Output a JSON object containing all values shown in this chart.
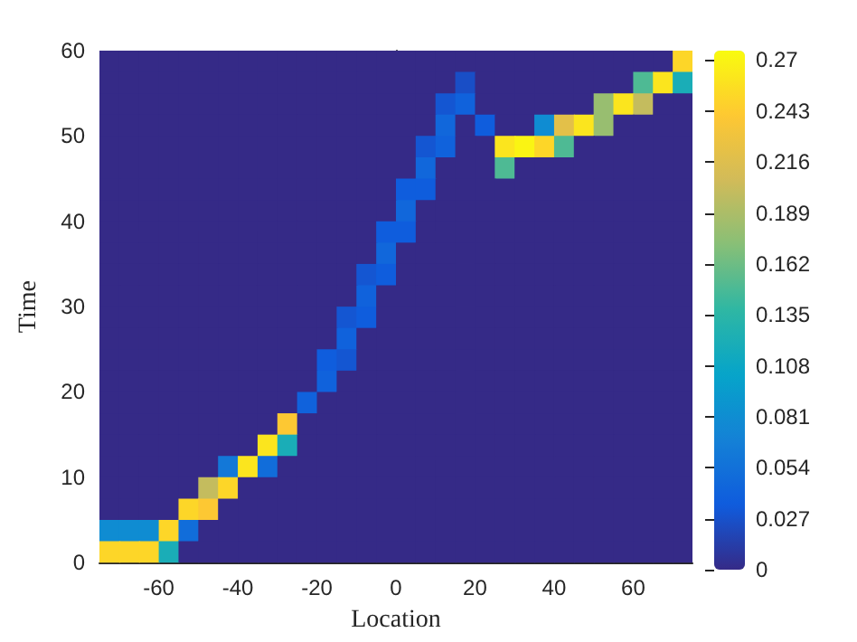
{
  "chart_data": {
    "type": "heatmap",
    "xlabel": "Location",
    "ylabel": "Time",
    "x": [
      -72.5,
      -67.5,
      -62.5,
      -57.5,
      -52.5,
      -47.5,
      -42.5,
      -37.5,
      -32.5,
      -27.5,
      -22.5,
      -17.5,
      -12.5,
      -7.5,
      -2.5,
      2.5,
      7.5,
      12.5,
      17.5,
      22.5,
      27.5,
      32.5,
      37.5,
      42.5,
      47.5,
      52.5,
      57.5,
      62.5,
      67.5,
      72.5
    ],
    "cells": [
      [
        0,
        0,
        0,
        0,
        0,
        0,
        0,
        0,
        0,
        0,
        0,
        0,
        0,
        0,
        0,
        0,
        0,
        0,
        0,
        0,
        0,
        0,
        0,
        0,
        0,
        0,
        0,
        0,
        0,
        0.25
      ],
      [
        0,
        0,
        0,
        0,
        0,
        0,
        0,
        0,
        0,
        0,
        0,
        0,
        0,
        0,
        0,
        0,
        0,
        0,
        0.025,
        0,
        0,
        0,
        0,
        0,
        0,
        0,
        0,
        0.15,
        0.26,
        0.12
      ],
      [
        0,
        0,
        0,
        0,
        0,
        0,
        0,
        0,
        0,
        0,
        0,
        0,
        0,
        0,
        0,
        0,
        0,
        0.03,
        0.04,
        0,
        0,
        0,
        0,
        0,
        0,
        0.18,
        0.26,
        0.2,
        0,
        0
      ],
      [
        0,
        0,
        0,
        0,
        0,
        0,
        0,
        0,
        0,
        0,
        0,
        0,
        0,
        0,
        0,
        0,
        0,
        0.045,
        0,
        0.035,
        0,
        0,
        0.08,
        0.22,
        0.26,
        0.18,
        0,
        0,
        0,
        0
      ],
      [
        0,
        0,
        0,
        0,
        0,
        0,
        0,
        0,
        0,
        0,
        0,
        0,
        0,
        0,
        0,
        0,
        0.03,
        0.04,
        0,
        0,
        0.26,
        0.27,
        0.25,
        0.15,
        0,
        0,
        0,
        0,
        0,
        0
      ],
      [
        0,
        0,
        0,
        0,
        0,
        0,
        0,
        0,
        0,
        0,
        0,
        0,
        0,
        0,
        0,
        0,
        0.045,
        0,
        0,
        0,
        0.15,
        0,
        0,
        0,
        0,
        0,
        0,
        0,
        0,
        0
      ],
      [
        0,
        0,
        0,
        0,
        0,
        0,
        0,
        0,
        0,
        0,
        0,
        0,
        0,
        0,
        0,
        0.035,
        0.035,
        0,
        0,
        0,
        0,
        0,
        0,
        0,
        0,
        0,
        0,
        0,
        0,
        0
      ],
      [
        0,
        0,
        0,
        0,
        0,
        0,
        0,
        0,
        0,
        0,
        0,
        0,
        0,
        0,
        0,
        0.045,
        0,
        0,
        0,
        0,
        0,
        0,
        0,
        0,
        0,
        0,
        0,
        0,
        0,
        0
      ],
      [
        0,
        0,
        0,
        0,
        0,
        0,
        0,
        0,
        0,
        0,
        0,
        0,
        0,
        0,
        0.035,
        0.035,
        0,
        0,
        0,
        0,
        0,
        0,
        0,
        0,
        0,
        0,
        0,
        0,
        0,
        0
      ],
      [
        0,
        0,
        0,
        0,
        0,
        0,
        0,
        0,
        0,
        0,
        0,
        0,
        0,
        0,
        0.045,
        0,
        0,
        0,
        0,
        0,
        0,
        0,
        0,
        0,
        0,
        0,
        0,
        0,
        0,
        0
      ],
      [
        0,
        0,
        0,
        0,
        0,
        0,
        0,
        0,
        0,
        0,
        0,
        0,
        0,
        0.03,
        0.035,
        0,
        0,
        0,
        0,
        0,
        0,
        0,
        0,
        0,
        0,
        0,
        0,
        0,
        0,
        0
      ],
      [
        0,
        0,
        0,
        0,
        0,
        0,
        0,
        0,
        0,
        0,
        0,
        0,
        0,
        0.04,
        0,
        0,
        0,
        0,
        0,
        0,
        0,
        0,
        0,
        0,
        0,
        0,
        0,
        0,
        0,
        0
      ],
      [
        0,
        0,
        0,
        0,
        0,
        0,
        0,
        0,
        0,
        0,
        0,
        0,
        0.03,
        0.035,
        0,
        0,
        0,
        0,
        0,
        0,
        0,
        0,
        0,
        0,
        0,
        0,
        0,
        0,
        0,
        0
      ],
      [
        0,
        0,
        0,
        0,
        0,
        0,
        0,
        0,
        0,
        0,
        0,
        0,
        0.04,
        0,
        0,
        0,
        0,
        0,
        0,
        0,
        0,
        0,
        0,
        0,
        0,
        0,
        0,
        0,
        0,
        0
      ],
      [
        0,
        0,
        0,
        0,
        0,
        0,
        0,
        0,
        0,
        0,
        0,
        0.035,
        0.03,
        0,
        0,
        0,
        0,
        0,
        0,
        0,
        0,
        0,
        0,
        0,
        0,
        0,
        0,
        0,
        0,
        0
      ],
      [
        0,
        0,
        0,
        0,
        0,
        0,
        0,
        0,
        0,
        0,
        0,
        0.04,
        0,
        0,
        0,
        0,
        0,
        0,
        0,
        0,
        0,
        0,
        0,
        0,
        0,
        0,
        0,
        0,
        0,
        0
      ],
      [
        0,
        0,
        0,
        0,
        0,
        0,
        0,
        0,
        0,
        0,
        0.04,
        0,
        0,
        0,
        0,
        0,
        0,
        0,
        0,
        0,
        0,
        0,
        0,
        0,
        0,
        0,
        0,
        0,
        0,
        0
      ],
      [
        0,
        0,
        0,
        0,
        0,
        0,
        0,
        0,
        0,
        0.24,
        0,
        0,
        0,
        0,
        0,
        0,
        0,
        0,
        0,
        0,
        0,
        0,
        0,
        0,
        0,
        0,
        0,
        0,
        0,
        0
      ],
      [
        0,
        0,
        0,
        0,
        0,
        0,
        0,
        0,
        0.26,
        0.12,
        0,
        0,
        0,
        0,
        0,
        0,
        0,
        0,
        0,
        0,
        0,
        0,
        0,
        0,
        0,
        0,
        0,
        0,
        0,
        0
      ],
      [
        0,
        0,
        0,
        0,
        0,
        0,
        0.06,
        0.26,
        0.05,
        0,
        0,
        0,
        0,
        0,
        0,
        0,
        0,
        0,
        0,
        0,
        0,
        0,
        0,
        0,
        0,
        0,
        0,
        0,
        0,
        0
      ],
      [
        0,
        0,
        0,
        0,
        0,
        0.2,
        0.25,
        0,
        0,
        0,
        0,
        0,
        0,
        0,
        0,
        0,
        0,
        0,
        0,
        0,
        0,
        0,
        0,
        0,
        0,
        0,
        0,
        0,
        0,
        0
      ],
      [
        0,
        0,
        0,
        0,
        0.25,
        0.24,
        0,
        0,
        0,
        0,
        0,
        0,
        0,
        0,
        0,
        0,
        0,
        0,
        0,
        0,
        0,
        0,
        0,
        0,
        0,
        0,
        0,
        0,
        0,
        0
      ],
      [
        0.08,
        0.08,
        0.08,
        0.25,
        0.05,
        0,
        0,
        0,
        0,
        0,
        0,
        0,
        0,
        0,
        0,
        0,
        0,
        0,
        0,
        0,
        0,
        0,
        0,
        0,
        0,
        0,
        0,
        0,
        0,
        0
      ],
      [
        0.25,
        0.25,
        0.25,
        0.12,
        0,
        0,
        0,
        0,
        0,
        0,
        0,
        0,
        0,
        0,
        0,
        0,
        0,
        0,
        0,
        0,
        0,
        0,
        0,
        0,
        0,
        0,
        0,
        0,
        0,
        0
      ]
    ],
    "xlim": [
      -75,
      75
    ],
    "xticks": [
      -60,
      -40,
      -20,
      0,
      20,
      40,
      60
    ],
    "ylim": [
      0,
      60
    ],
    "yticks": [
      0,
      10,
      20,
      30,
      40,
      50,
      60
    ],
    "clim": [
      0,
      0.275
    ],
    "cticks": [
      0,
      0.027,
      0.054,
      0.081,
      0.108,
      0.135,
      0.162,
      0.189,
      0.216,
      0.243,
      0.27
    ]
  }
}
